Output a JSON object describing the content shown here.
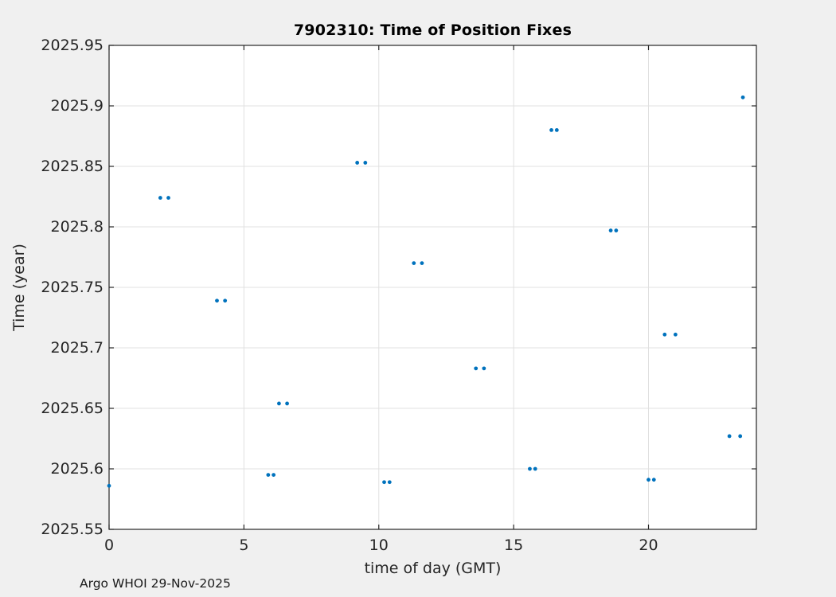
{
  "figure": {
    "title": "7902310: Time of Position Fixes",
    "footer": "Argo WHOI 29-Nov-2025"
  },
  "chart_data": {
    "type": "scatter",
    "title": "7902310: Time of Position Fixes",
    "xlabel": "time of day (GMT)",
    "ylabel": "Time (year)",
    "xlim": [
      0,
      24
    ],
    "ylim": [
      2025.55,
      2025.95
    ],
    "xticks": [
      0,
      5,
      10,
      15,
      20
    ],
    "xtick_labels": [
      "0",
      "5",
      "10",
      "15",
      "20"
    ],
    "yticks": [
      2025.55,
      2025.6,
      2025.65,
      2025.7,
      2025.75,
      2025.8,
      2025.85,
      2025.9,
      2025.95
    ],
    "ytick_labels": [
      "2025.55",
      "2025.6",
      "2025.65",
      "2025.7",
      "2025.75",
      "2025.8",
      "2025.85",
      "2025.9",
      "2025.95"
    ],
    "grid": true,
    "legend": "none",
    "marker": "filled-dot",
    "points": [
      [
        0.0,
        2025.586
      ],
      [
        1.9,
        2025.824
      ],
      [
        2.2,
        2025.824
      ],
      [
        4.0,
        2025.739
      ],
      [
        4.3,
        2025.739
      ],
      [
        5.9,
        2025.595
      ],
      [
        6.1,
        2025.595
      ],
      [
        6.3,
        2025.654
      ],
      [
        6.6,
        2025.654
      ],
      [
        9.2,
        2025.853
      ],
      [
        9.5,
        2025.853
      ],
      [
        10.2,
        2025.589
      ],
      [
        10.4,
        2025.589
      ],
      [
        11.3,
        2025.77
      ],
      [
        11.6,
        2025.77
      ],
      [
        13.6,
        2025.683
      ],
      [
        13.9,
        2025.683
      ],
      [
        15.6,
        2025.6
      ],
      [
        15.8,
        2025.6
      ],
      [
        16.4,
        2025.88
      ],
      [
        16.6,
        2025.88
      ],
      [
        18.6,
        2025.797
      ],
      [
        18.8,
        2025.797
      ],
      [
        20.0,
        2025.591
      ],
      [
        20.2,
        2025.591
      ],
      [
        20.6,
        2025.711
      ],
      [
        21.0,
        2025.711
      ],
      [
        23.0,
        2025.627
      ],
      [
        23.4,
        2025.627
      ],
      [
        23.5,
        2025.907
      ]
    ]
  },
  "colors": {
    "marker": "#0072bd",
    "figure_background": "#f0f0f0",
    "plot_background": "#ffffff",
    "grid": "#e0e0e0",
    "axis": "#262626",
    "tick_text": "#262626",
    "title_text": "#000000"
  }
}
